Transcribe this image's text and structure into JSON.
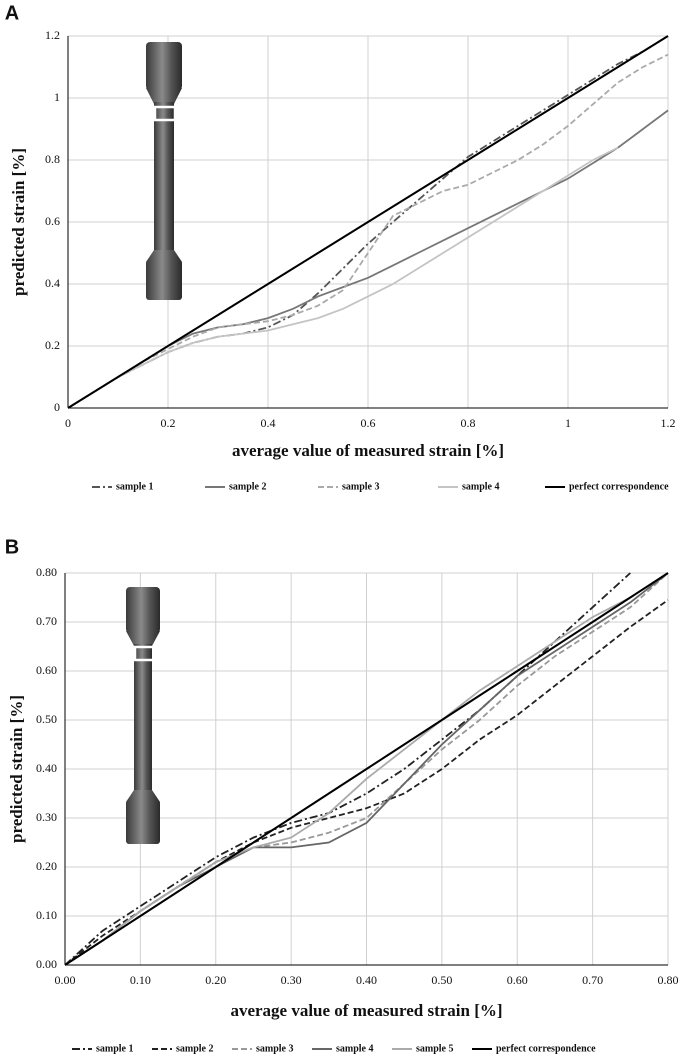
{
  "chart_data": [
    {
      "type": "line",
      "label": "A",
      "xlabel": "average value of measured strain [%]",
      "ylabel": "predicted strain [%]",
      "xlim": [
        0,
        1.2
      ],
      "ylim": [
        0,
        1.2
      ],
      "xticks": [
        0,
        0.2,
        0.4,
        0.6,
        0.8,
        1,
        1.2
      ],
      "yticks": [
        0,
        0.2,
        0.4,
        0.6,
        0.8,
        1,
        1.2
      ],
      "grid": true,
      "x": [
        0,
        0.05,
        0.1,
        0.15,
        0.2,
        0.25,
        0.3,
        0.35,
        0.4,
        0.45,
        0.5,
        0.55,
        0.6,
        0.65,
        0.7,
        0.75,
        0.8,
        0.85,
        0.9,
        0.95,
        1.0,
        1.05,
        1.1,
        1.15,
        1.2
      ],
      "series": [
        {
          "name": "sample 1",
          "color": "#555555",
          "dash": "dashdot",
          "values": [
            0,
            0.05,
            0.1,
            0.14,
            0.18,
            0.21,
            0.23,
            0.24,
            0.26,
            0.3,
            0.37,
            0.45,
            0.53,
            0.6,
            0.67,
            0.74,
            0.81,
            0.86,
            0.91,
            0.96,
            1.01,
            1.06,
            1.11,
            1.15,
            1.2
          ]
        },
        {
          "name": "sample 2",
          "color": "#777777",
          "dash": "solid",
          "values": [
            0,
            0.05,
            0.1,
            0.15,
            0.2,
            0.24,
            0.26,
            0.27,
            0.29,
            0.32,
            0.36,
            0.39,
            0.42,
            0.46,
            0.5,
            0.54,
            0.58,
            0.62,
            0.66,
            0.7,
            0.74,
            0.79,
            0.84,
            0.9,
            0.96
          ]
        },
        {
          "name": "sample 3",
          "color": "#aaaaaa",
          "dash": "dashed",
          "values": [
            0,
            0.05,
            0.1,
            0.15,
            0.19,
            0.23,
            0.26,
            0.27,
            0.28,
            0.3,
            0.33,
            0.38,
            0.5,
            0.62,
            0.66,
            0.7,
            0.72,
            0.76,
            0.8,
            0.85,
            0.91,
            0.98,
            1.05,
            1.1,
            1.14
          ]
        },
        {
          "name": "sample 4",
          "color": "#c4c4c4",
          "dash": "solid",
          "values": [
            0,
            0.05,
            0.1,
            0.14,
            0.18,
            0.21,
            0.23,
            0.24,
            0.25,
            0.27,
            0.29,
            0.32,
            0.36,
            0.4,
            0.45,
            0.5,
            0.55,
            0.6,
            0.65,
            0.7,
            0.75,
            0.8,
            0.84,
            null,
            null
          ]
        },
        {
          "name": "perfect correspondence",
          "color": "#000000",
          "dash": "solid",
          "values": [
            0,
            0.05,
            0.1,
            0.15,
            0.2,
            0.25,
            0.3,
            0.35,
            0.4,
            0.45,
            0.5,
            0.55,
            0.6,
            0.65,
            0.7,
            0.75,
            0.8,
            0.85,
            0.9,
            0.95,
            1.0,
            1.05,
            1.1,
            1.15,
            1.2
          ]
        }
      ]
    },
    {
      "type": "line",
      "label": "B",
      "xlabel": "average value of measured strain [%]",
      "ylabel": "predicted strain [%]",
      "xlim": [
        0,
        0.8
      ],
      "ylim": [
        0,
        0.8
      ],
      "xticks": [
        {
          "value": 0,
          "label": "0.00"
        },
        {
          "value": 0.1,
          "label": "0.10"
        },
        {
          "value": 0.2,
          "label": "0.20"
        },
        {
          "value": 0.3,
          "label": "0.30"
        },
        {
          "value": 0.4,
          "label": "0.40"
        },
        {
          "value": 0.5,
          "label": "0.50"
        },
        {
          "value": 0.6,
          "label": "0.60"
        },
        {
          "value": 0.7,
          "label": "0.70"
        },
        {
          "value": 0.8,
          "label": "0.80"
        }
      ],
      "yticks": [
        {
          "value": 0,
          "label": "0.00"
        },
        {
          "value": 0.1,
          "label": "0.10"
        },
        {
          "value": 0.2,
          "label": "0.20"
        },
        {
          "value": 0.3,
          "label": "0.30"
        },
        {
          "value": 0.4,
          "label": "0.40"
        },
        {
          "value": 0.5,
          "label": "0.50"
        },
        {
          "value": 0.6,
          "label": "0.60"
        },
        {
          "value": 0.7,
          "label": "0.70"
        },
        {
          "value": 0.8,
          "label": "0.80"
        }
      ],
      "grid": true,
      "x": [
        0,
        0.05,
        0.1,
        0.15,
        0.2,
        0.25,
        0.3,
        0.35,
        0.4,
        0.45,
        0.5,
        0.55,
        0.6,
        0.65,
        0.7,
        0.75,
        0.8
      ],
      "series": [
        {
          "name": "sample 1",
          "color": "#222222",
          "dash": "dashdot",
          "values": [
            0,
            0.07,
            0.12,
            0.17,
            0.22,
            0.26,
            0.29,
            0.31,
            0.35,
            0.4,
            0.46,
            0.52,
            0.59,
            0.66,
            0.73,
            0.8,
            null
          ]
        },
        {
          "name": "sample 2",
          "color": "#222222",
          "dash": "dashed",
          "values": [
            0,
            0.06,
            0.11,
            0.16,
            0.21,
            0.25,
            0.28,
            0.3,
            0.32,
            0.35,
            0.4,
            0.46,
            0.51,
            0.57,
            0.63,
            0.69,
            0.745
          ]
        },
        {
          "name": "sample 3",
          "color": "#999999",
          "dash": "dashed",
          "values": [
            0,
            0.05,
            0.11,
            0.16,
            0.21,
            0.24,
            0.25,
            0.27,
            0.3,
            0.37,
            0.44,
            0.5,
            0.57,
            0.63,
            0.68,
            0.73,
            0.8
          ]
        },
        {
          "name": "sample 4",
          "color": "#666666",
          "dash": "solid",
          "values": [
            0,
            0.05,
            0.11,
            0.16,
            0.2,
            0.24,
            0.24,
            0.25,
            0.29,
            0.37,
            0.45,
            0.52,
            0.59,
            0.64,
            0.69,
            0.74,
            0.8
          ]
        },
        {
          "name": "sample 5",
          "color": "#aaaaaa",
          "dash": "solid",
          "values": [
            0,
            0.05,
            0.11,
            0.16,
            0.21,
            0.24,
            0.26,
            0.31,
            0.38,
            0.44,
            0.5,
            0.56,
            0.61,
            0.66,
            0.71,
            0.75,
            0.8
          ]
        },
        {
          "name": "perfect correspondence",
          "color": "#000000",
          "dash": "solid",
          "values": [
            0,
            0.05,
            0.1,
            0.15,
            0.2,
            0.25,
            0.3,
            0.35,
            0.4,
            0.45,
            0.5,
            0.55,
            0.6,
            0.65,
            0.7,
            0.75,
            0.8
          ]
        }
      ]
    }
  ]
}
